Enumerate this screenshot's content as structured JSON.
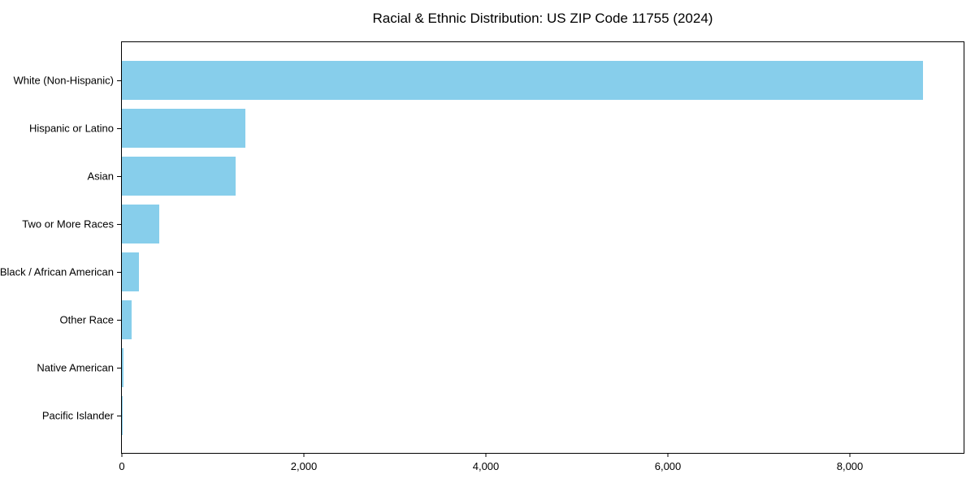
{
  "chart_data": {
    "type": "bar",
    "orientation": "horizontal",
    "title": "Racial & Ethnic Distribution: US ZIP Code 11755 (2024)",
    "categories": [
      "White (Non-Hispanic)",
      "Hispanic or Latino",
      "Asian",
      "Two or More Races",
      "Black / African American",
      "Other Race",
      "Native American",
      "Pacific Islander"
    ],
    "values": [
      8800,
      1355,
      1250,
      410,
      190,
      110,
      15,
      5
    ],
    "xlabel": "",
    "ylabel": "",
    "xlim": [
      0,
      9250
    ],
    "x_ticks": [
      0,
      2000,
      4000,
      6000,
      8000
    ],
    "x_tick_labels": [
      "0",
      "2,000",
      "4,000",
      "6,000",
      "8,000"
    ],
    "bar_color": "#87CEEB",
    "background_color": "#ffffff",
    "grid": "off",
    "legend": "none"
  }
}
